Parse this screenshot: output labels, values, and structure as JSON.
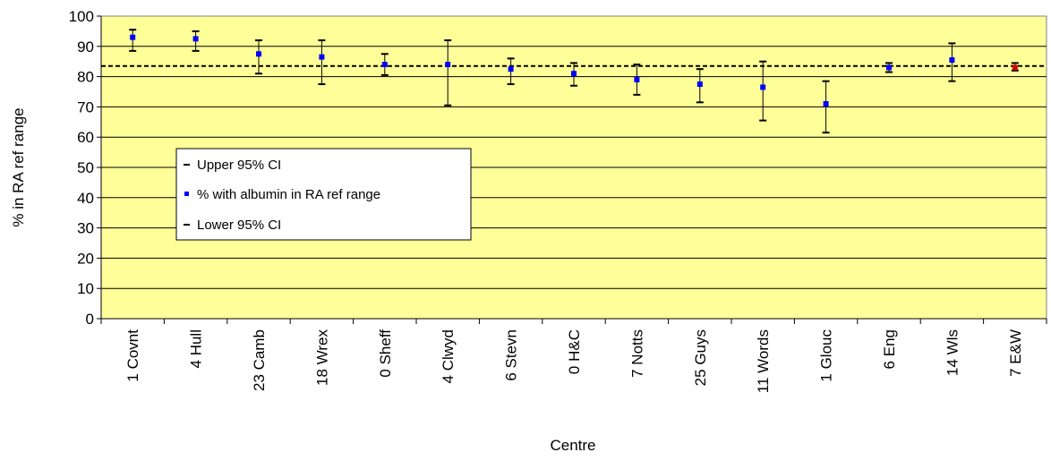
{
  "chart_data": {
    "type": "scatter",
    "xlabel": "Centre",
    "ylabel": "% in RA ref range",
    "ylim": [
      0,
      100
    ],
    "yticks": [
      0,
      10,
      20,
      30,
      40,
      50,
      60,
      70,
      80,
      90,
      100
    ],
    "categories": [
      "1 Covnt",
      "4 Hull",
      "23 Camb",
      "18 Wrex",
      "0 Sheff",
      "4 Clwyd",
      "6 Stevn",
      "0 H&C",
      "7 Notts",
      "25 Guys",
      "11 Words",
      "1 Glouc",
      "6 Eng",
      "14 Wls",
      "7 E&W"
    ],
    "series": [
      {
        "name": "Upper 95% CI",
        "values": [
          95.5,
          95.0,
          92.0,
          92.0,
          87.5,
          92.0,
          86.0,
          84.5,
          84.0,
          82.5,
          85.0,
          78.5,
          84.5,
          91.0,
          84.5
        ]
      },
      {
        "name": "% with albumin in RA ref range",
        "values": [
          93.0,
          92.5,
          87.5,
          86.5,
          84.0,
          84.0,
          82.5,
          81.0,
          79.0,
          77.5,
          76.5,
          71.0,
          83.0,
          85.5,
          83.0
        ]
      },
      {
        "name": "Lower 95% CI",
        "values": [
          88.5,
          88.5,
          81.0,
          77.5,
          80.5,
          70.5,
          77.5,
          77.0,
          74.0,
          71.5,
          65.5,
          61.5,
          81.5,
          78.5,
          82.0
        ]
      }
    ],
    "reference_line": 83.5,
    "plot_background": "#ffff99",
    "marker_color": "#0000ff",
    "highlight_marker_color": "#cc0000",
    "grid": true,
    "legend_position": "left-middle"
  },
  "legend": {
    "items": [
      {
        "label": "Upper 95% CI",
        "symbol": "dash"
      },
      {
        "label": "% with albumin in RA ref range",
        "symbol": "blue-square"
      },
      {
        "label": "Lower 95% CI",
        "symbol": "dash"
      }
    ]
  }
}
